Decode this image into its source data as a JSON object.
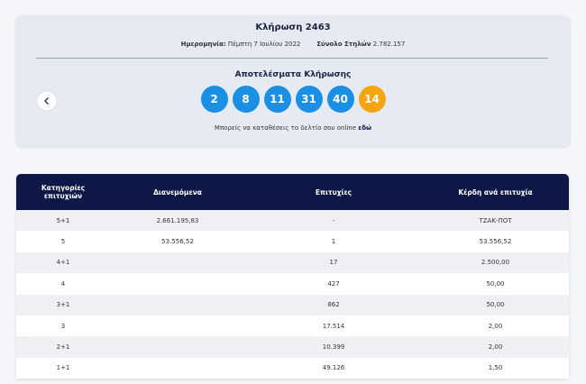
{
  "header": {
    "title": "Κλήρωση 2463",
    "date_label": "Ημερομηνία:",
    "date": "Πέμπτη 7 Ιουλίου 2022",
    "columns_label": "Σύνολο Στηλών",
    "columns": "2.782.157"
  },
  "results": {
    "title": "Αποτελέσματα Κλήρωσης",
    "numbers": [
      2,
      8,
      11,
      31,
      40
    ],
    "bonus": 14,
    "note": "Μπορείς να καταθέσεις το δελτίο σου online",
    "link": "εδώ"
  },
  "table": {
    "headers": [
      "Κατηγορίες επιτυχιών",
      "Διανεμόμενα",
      "Επιτυχίες",
      "Κέρδη ανά επιτυχία"
    ],
    "rows": [
      [
        "5+1",
        "2.661.195,83",
        "-",
        "ΤΖΑΚ-ΠΟΤ"
      ],
      [
        "5",
        "53.556,52",
        "1",
        "53.556,52"
      ],
      [
        "4+1",
        "",
        "17",
        "2.500,00"
      ],
      [
        "4",
        "",
        "427",
        "50,00"
      ],
      [
        "3+1",
        "",
        "862",
        "50,00"
      ],
      [
        "3",
        "",
        "17.514",
        "2,00"
      ],
      [
        "2+1",
        "",
        "10.399",
        "2,00"
      ],
      [
        "1+1",
        "",
        "49.126",
        "1,50"
      ]
    ]
  }
}
